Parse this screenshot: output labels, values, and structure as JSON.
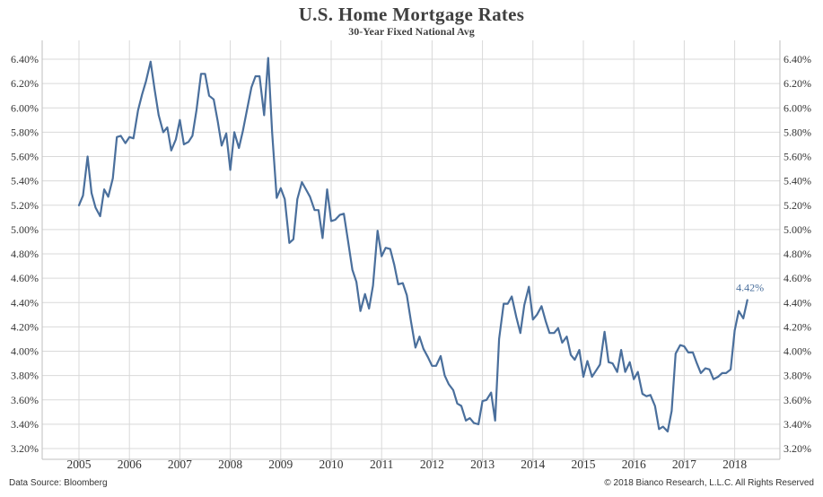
{
  "header": {
    "title": "U.S. Home Mortgage Rates",
    "subtitle": "30-Year Fixed National Avg"
  },
  "footer": {
    "source": "Data Source: Bloomberg",
    "copyright": "© 2018 Bianco Research, L.L.C. All Rights Reserved"
  },
  "colors": {
    "line": "#4a6f9c",
    "grid": "#d9d9d9",
    "axis": "#bfbfbf"
  },
  "chart_data": {
    "type": "line",
    "title": "U.S. Home Mortgage Rates",
    "subtitle": "30-Year Fixed National Avg",
    "xlabel": "",
    "ylabel": "",
    "ylim": [
      3.2,
      6.4
    ],
    "y_ticks": [
      "3.20%",
      "3.40%",
      "3.60%",
      "3.80%",
      "4.00%",
      "4.20%",
      "4.40%",
      "4.60%",
      "4.80%",
      "5.00%",
      "5.20%",
      "5.40%",
      "5.60%",
      "5.80%",
      "6.00%",
      "6.20%",
      "6.40%"
    ],
    "x_ticks": [
      "2005",
      "2006",
      "2007",
      "2008",
      "2009",
      "2010",
      "2011",
      "2012",
      "2013",
      "2014",
      "2015",
      "2016",
      "2017",
      "2018"
    ],
    "grid": true,
    "legend": "none",
    "annotation": "4.42%",
    "series": [
      {
        "points": [
          [
            2005.0,
            5.2
          ],
          [
            2005.08,
            5.28
          ],
          [
            2005.17,
            5.6
          ],
          [
            2005.25,
            5.3
          ],
          [
            2005.33,
            5.18
          ],
          [
            2005.42,
            5.11
          ],
          [
            2005.5,
            5.33
          ],
          [
            2005.58,
            5.27
          ],
          [
            2005.67,
            5.42
          ],
          [
            2005.75,
            5.76
          ],
          [
            2005.83,
            5.77
          ],
          [
            2005.92,
            5.71
          ],
          [
            2006.0,
            5.76
          ],
          [
            2006.08,
            5.75
          ],
          [
            2006.17,
            5.98
          ],
          [
            2006.25,
            6.11
          ],
          [
            2006.33,
            6.22
          ],
          [
            2006.42,
            6.38
          ],
          [
            2006.5,
            6.15
          ],
          [
            2006.58,
            5.94
          ],
          [
            2006.67,
            5.8
          ],
          [
            2006.75,
            5.84
          ],
          [
            2006.83,
            5.65
          ],
          [
            2006.92,
            5.74
          ],
          [
            2007.0,
            5.9
          ],
          [
            2007.08,
            5.7
          ],
          [
            2007.17,
            5.72
          ],
          [
            2007.25,
            5.77
          ],
          [
            2007.33,
            5.98
          ],
          [
            2007.42,
            6.28
          ],
          [
            2007.5,
            6.28
          ],
          [
            2007.58,
            6.1
          ],
          [
            2007.67,
            6.07
          ],
          [
            2007.75,
            5.89
          ],
          [
            2007.83,
            5.69
          ],
          [
            2007.92,
            5.79
          ],
          [
            2008.0,
            5.49
          ],
          [
            2008.08,
            5.8
          ],
          [
            2008.17,
            5.67
          ],
          [
            2008.25,
            5.81
          ],
          [
            2008.33,
            5.98
          ],
          [
            2008.42,
            6.17
          ],
          [
            2008.5,
            6.26
          ],
          [
            2008.58,
            6.26
          ],
          [
            2008.67,
            5.94
          ],
          [
            2008.75,
            6.41
          ],
          [
            2008.83,
            5.8
          ],
          [
            2008.92,
            5.26
          ],
          [
            2009.0,
            5.34
          ],
          [
            2009.08,
            5.25
          ],
          [
            2009.17,
            4.89
          ],
          [
            2009.25,
            4.92
          ],
          [
            2009.33,
            5.25
          ],
          [
            2009.42,
            5.39
          ],
          [
            2009.5,
            5.33
          ],
          [
            2009.58,
            5.27
          ],
          [
            2009.67,
            5.16
          ],
          [
            2009.75,
            5.16
          ],
          [
            2009.83,
            4.93
          ],
          [
            2009.92,
            5.33
          ],
          [
            2010.0,
            5.07
          ],
          [
            2010.08,
            5.08
          ],
          [
            2010.17,
            5.12
          ],
          [
            2010.25,
            5.13
          ],
          [
            2010.33,
            4.92
          ],
          [
            2010.42,
            4.67
          ],
          [
            2010.5,
            4.57
          ],
          [
            2010.58,
            4.33
          ],
          [
            2010.67,
            4.47
          ],
          [
            2010.75,
            4.35
          ],
          [
            2010.83,
            4.54
          ],
          [
            2010.92,
            4.99
          ],
          [
            2011.0,
            4.78
          ],
          [
            2011.08,
            4.85
          ],
          [
            2011.17,
            4.84
          ],
          [
            2011.25,
            4.71
          ],
          [
            2011.33,
            4.55
          ],
          [
            2011.42,
            4.56
          ],
          [
            2011.5,
            4.46
          ],
          [
            2011.58,
            4.25
          ],
          [
            2011.67,
            4.03
          ],
          [
            2011.75,
            4.12
          ],
          [
            2011.83,
            4.02
          ],
          [
            2011.92,
            3.95
          ],
          [
            2012.0,
            3.88
          ],
          [
            2012.08,
            3.88
          ],
          [
            2012.17,
            3.96
          ],
          [
            2012.25,
            3.8
          ],
          [
            2012.33,
            3.73
          ],
          [
            2012.42,
            3.68
          ],
          [
            2012.5,
            3.57
          ],
          [
            2012.58,
            3.55
          ],
          [
            2012.67,
            3.43
          ],
          [
            2012.75,
            3.45
          ],
          [
            2012.83,
            3.41
          ],
          [
            2012.92,
            3.4
          ],
          [
            2013.0,
            3.59
          ],
          [
            2013.08,
            3.6
          ],
          [
            2013.17,
            3.66
          ],
          [
            2013.25,
            3.43
          ],
          [
            2013.33,
            4.1
          ],
          [
            2013.42,
            4.39
          ],
          [
            2013.5,
            4.39
          ],
          [
            2013.58,
            4.45
          ],
          [
            2013.67,
            4.28
          ],
          [
            2013.75,
            4.15
          ],
          [
            2013.83,
            4.38
          ],
          [
            2013.92,
            4.53
          ],
          [
            2014.0,
            4.26
          ],
          [
            2014.08,
            4.3
          ],
          [
            2014.17,
            4.37
          ],
          [
            2014.25,
            4.25
          ],
          [
            2014.33,
            4.15
          ],
          [
            2014.42,
            4.15
          ],
          [
            2014.5,
            4.19
          ],
          [
            2014.58,
            4.07
          ],
          [
            2014.67,
            4.12
          ],
          [
            2014.75,
            3.97
          ],
          [
            2014.83,
            3.93
          ],
          [
            2014.92,
            4.01
          ],
          [
            2015.0,
            3.79
          ],
          [
            2015.08,
            3.92
          ],
          [
            2015.17,
            3.79
          ],
          [
            2015.25,
            3.84
          ],
          [
            2015.33,
            3.89
          ],
          [
            2015.42,
            4.16
          ],
          [
            2015.5,
            3.91
          ],
          [
            2015.58,
            3.9
          ],
          [
            2015.67,
            3.83
          ],
          [
            2015.75,
            4.01
          ],
          [
            2015.83,
            3.83
          ],
          [
            2015.92,
            3.91
          ],
          [
            2016.0,
            3.77
          ],
          [
            2016.08,
            3.83
          ],
          [
            2016.17,
            3.65
          ],
          [
            2016.25,
            3.63
          ],
          [
            2016.33,
            3.64
          ],
          [
            2016.42,
            3.55
          ],
          [
            2016.5,
            3.36
          ],
          [
            2016.58,
            3.38
          ],
          [
            2016.67,
            3.34
          ],
          [
            2016.75,
            3.51
          ],
          [
            2016.83,
            3.98
          ],
          [
            2016.92,
            4.05
          ],
          [
            2017.0,
            4.04
          ],
          [
            2017.08,
            3.99
          ],
          [
            2017.17,
            3.99
          ],
          [
            2017.25,
            3.9
          ],
          [
            2017.33,
            3.82
          ],
          [
            2017.42,
            3.86
          ],
          [
            2017.5,
            3.85
          ],
          [
            2017.58,
            3.77
          ],
          [
            2017.67,
            3.79
          ],
          [
            2017.75,
            3.82
          ],
          [
            2017.83,
            3.82
          ],
          [
            2017.92,
            3.85
          ],
          [
            2018.0,
            4.17
          ],
          [
            2018.08,
            4.33
          ],
          [
            2018.17,
            4.27
          ],
          [
            2018.25,
            4.42
          ]
        ]
      }
    ]
  }
}
